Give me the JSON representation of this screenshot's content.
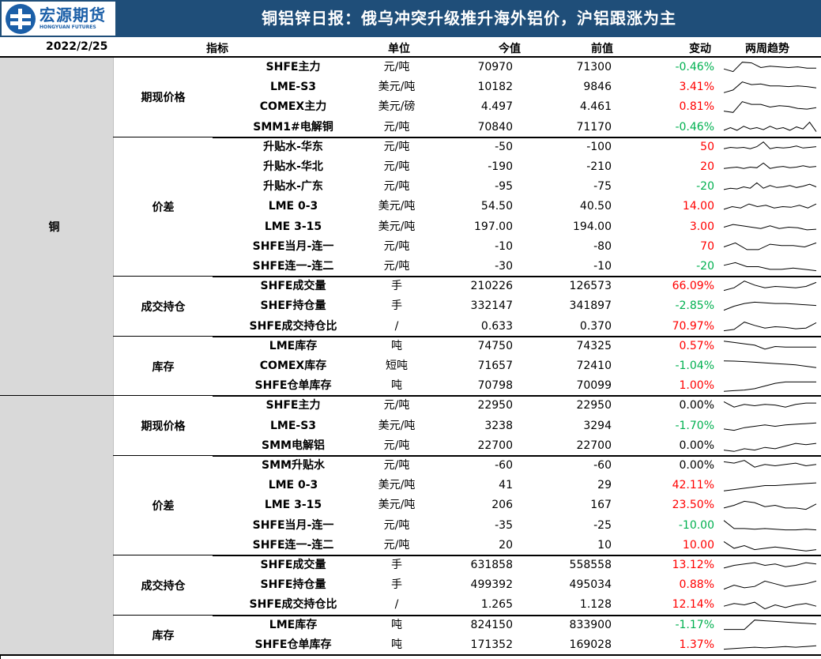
{
  "header": {
    "logo_cn": "宏源期货",
    "logo_en": "HONGYUAN FUTURES",
    "title": "铜铝锌日报：俄乌冲突升级推升海外铝价，沪铝跟涨为主",
    "bar_color": "#1f4e79"
  },
  "table": {
    "date": "2022/2/25",
    "headers": {
      "indicator": "指标",
      "unit": "单位",
      "now": "今值",
      "prev": "前值",
      "change": "变动",
      "trend": "两周趋势"
    },
    "colors": {
      "up": "#ff0000",
      "down": "#00b050",
      "metal_bg": "#d9d9d9"
    },
    "metals": [
      {
        "name": "铜",
        "groups": [
          {
            "name": "期现价格",
            "rows": [
              {
                "indicator": "SHFE主力",
                "unit": "元/吨",
                "now": "70970",
                "prev": "71300",
                "change": "-0.46%",
                "dir": "down",
                "trend": [
                  0.4,
                  0.2,
                  0.9,
                  0.85,
                  0.5,
                  0.6,
                  0.55,
                  0.5,
                  0.55,
                  0.45,
                  0.45
                ]
              },
              {
                "indicator": "LME-S3",
                "unit": "美元/吨",
                "now": "10182",
                "prev": "9846",
                "change": "3.41%",
                "dir": "up",
                "trend": [
                  0.1,
                  0.3,
                  0.9,
                  0.7,
                  0.75,
                  0.6,
                  0.6,
                  0.55,
                  0.6,
                  0.55,
                  0.45
                ]
              },
              {
                "indicator": "COMEX主力",
                "unit": "美元/磅",
                "now": "4.497",
                "prev": "4.461",
                "change": "0.81%",
                "dir": "up",
                "trend": [
                  0.2,
                  0.1,
                  0.9,
                  0.7,
                  0.7,
                  0.5,
                  0.6,
                  0.55,
                  0.4,
                  0.35,
                  0.45
                ]
              },
              {
                "indicator": "SMM1#电解铜",
                "unit": "元/吨",
                "now": "70840",
                "prev": "71170",
                "change": "-0.46%",
                "dir": "down",
                "trend": [
                  0.3,
                  0.5,
                  0.3,
                  0.6,
                  0.4,
                  0.5,
                  0.35,
                  0.6,
                  0.4,
                  0.5,
                  0.3,
                  0.55,
                  0.4,
                  0.9,
                  0.2
                ]
              }
            ]
          },
          {
            "name": "价差",
            "rows": [
              {
                "indicator": "升贴水-华东",
                "unit": "元/吨",
                "now": "-50",
                "prev": "-100",
                "change": "50",
                "dir": "up",
                "trend": [
                  0.4,
                  0.5,
                  0.45,
                  0.5,
                  0.4,
                  0.55,
                  0.9,
                  0.4,
                  0.5,
                  0.45,
                  0.5,
                  0.6,
                  0.45,
                  0.5,
                  0.55
                ]
              },
              {
                "indicator": "升贴水-华北",
                "unit": "元/吨",
                "now": "-190",
                "prev": "-210",
                "change": "20",
                "dir": "up",
                "trend": [
                  0.4,
                  0.45,
                  0.5,
                  0.4,
                  0.5,
                  0.45,
                  0.8,
                  0.4,
                  0.5,
                  0.55,
                  0.45,
                  0.5,
                  0.6,
                  0.5,
                  0.55
                ]
              },
              {
                "indicator": "升贴水-广东",
                "unit": "元/吨",
                "now": "-95",
                "prev": "-75",
                "change": "-20",
                "dir": "down",
                "trend": [
                  0.3,
                  0.4,
                  0.35,
                  0.5,
                  0.4,
                  0.8,
                  0.4,
                  0.6,
                  0.45,
                  0.5,
                  0.6,
                  0.45,
                  0.55,
                  0.7,
                  0.5
                ]
              },
              {
                "indicator": "LME 0-3",
                "unit": "美元/吨",
                "now": "54.50",
                "prev": "40.50",
                "change": "14.00",
                "dir": "up",
                "trend": [
                  0.3,
                  0.5,
                  0.4,
                  0.7,
                  0.5,
                  0.6,
                  0.4,
                  0.5,
                  0.45,
                  0.6,
                  0.4,
                  0.7
                ]
              },
              {
                "indicator": "LME 3-15",
                "unit": "美元/吨",
                "now": "197.00",
                "prev": "194.00",
                "change": "3.00",
                "dir": "up",
                "trend": [
                  0.5,
                  0.7,
                  0.6,
                  0.5,
                  0.4,
                  0.6,
                  0.4,
                  0.5,
                  0.45,
                  0.3,
                  0.35
                ]
              },
              {
                "indicator": "SHFE当月-连一",
                "unit": "元/吨",
                "now": "-10",
                "prev": "-80",
                "change": "70",
                "dir": "up",
                "trend": [
                  0.5,
                  0.8,
                  0.3,
                  0.3,
                  0.7,
                  0.6,
                  0.6,
                  0.5,
                  0.8
                ]
              },
              {
                "indicator": "SHFE连一-连二",
                "unit": "元/吨",
                "now": "-30",
                "prev": "-10",
                "change": "-20",
                "dir": "down",
                "trend": [
                  0.6,
                  0.8,
                  0.5,
                  0.5,
                  0.3,
                  0.3,
                  0.4,
                  0.3,
                  0.2
                ]
              }
            ]
          },
          {
            "name": "成交持仓",
            "rows": [
              {
                "indicator": "SHFE成交量",
                "unit": "手",
                "now": "210226",
                "prev": "126573",
                "change": "66.09%",
                "dir": "up",
                "trend": [
                  0.2,
                  0.4,
                  0.9,
                  0.6,
                  0.4,
                  0.5,
                  0.45,
                  0.4,
                  0.5,
                  0.8
                ]
              },
              {
                "indicator": "SHEF持仓量",
                "unit": "手",
                "now": "332147",
                "prev": "341897",
                "change": "-2.85%",
                "dir": "down",
                "trend": [
                  0.2,
                  0.5,
                  0.7,
                  0.8,
                  0.75,
                  0.7,
                  0.7,
                  0.65,
                  0.6,
                  0.55
                ]
              },
              {
                "indicator": "SHFE成交持仓比",
                "unit": "/",
                "now": "0.633",
                "prev": "0.370",
                "change": "70.97%",
                "dir": "up",
                "trend": [
                  0.2,
                  0.3,
                  0.85,
                  0.6,
                  0.4,
                  0.5,
                  0.45,
                  0.35,
                  0.4,
                  0.8
                ]
              }
            ]
          },
          {
            "name": "库存",
            "rows": [
              {
                "indicator": "LME库存",
                "unit": "吨",
                "now": "74750",
                "prev": "74325",
                "change": "0.57%",
                "dir": "up",
                "trend": [
                  0.9,
                  0.8,
                  0.7,
                  0.6,
                  0.3,
                  0.5,
                  0.45,
                  0.45,
                  0.45,
                  0.45
                ]
              },
              {
                "indicator": "COMEX库存",
                "unit": "短吨",
                "now": "71657",
                "prev": "72410",
                "change": "-1.04%",
                "dir": "down",
                "trend": [
                  0.9,
                  0.88,
                  0.85,
                  0.8,
                  0.75,
                  0.7,
                  0.65,
                  0.6,
                  0.5,
                  0.4
                ]
              },
              {
                "indicator": "SHFE仓单库存",
                "unit": "吨",
                "now": "70798",
                "prev": "70099",
                "change": "1.00%",
                "dir": "up",
                "trend": [
                  0.1,
                  0.15,
                  0.2,
                  0.3,
                  0.5,
                  0.7,
                  0.8,
                  0.8,
                  0.8,
                  0.8
                ]
              }
            ]
          }
        ]
      },
      {
        "name": "",
        "groups": [
          {
            "name": "期现价格",
            "rows": [
              {
                "indicator": "SHFE主力",
                "unit": "元/吨",
                "now": "22950",
                "prev": "22950",
                "change": "0.00%",
                "dir": "flat",
                "trend": [
                  0.8,
                  0.4,
                  0.6,
                  0.5,
                  0.6,
                  0.55,
                  0.4,
                  0.6,
                  0.7,
                  0.7
                ]
              },
              {
                "indicator": "LME-S3",
                "unit": "美元/吨",
                "now": "3238",
                "prev": "3294",
                "change": "-1.70%",
                "dir": "down",
                "trend": [
                  0.3,
                  0.2,
                  0.4,
                  0.5,
                  0.6,
                  0.5,
                  0.6,
                  0.65,
                  0.7,
                  0.75
                ]
              },
              {
                "indicator": "SMM电解铝",
                "unit": "元/吨",
                "now": "22700",
                "prev": "22700",
                "change": "0.00%",
                "dir": "flat",
                "trend": [
                  0.2,
                  0.1,
                  0.3,
                  0.2,
                  0.4,
                  0.3,
                  0.5,
                  0.7,
                  0.6,
                  0.7
                ]
              }
            ]
          },
          {
            "name": "价差",
            "rows": [
              {
                "indicator": "SMM升贴水",
                "unit": "元/吨",
                "now": "-60",
                "prev": "-60",
                "change": "0.00%",
                "dir": "flat",
                "trend": [
                  0.8,
                  0.7,
                  0.9,
                  0.4,
                  0.6,
                  0.5,
                  0.6,
                  0.7,
                  0.5,
                  0.6
                ]
              },
              {
                "indicator": "LME 0-3",
                "unit": "美元/吨",
                "now": "41",
                "prev": "29",
                "change": "42.11%",
                "dir": "up",
                "trend": [
                  0.1,
                  0.2,
                  0.3,
                  0.4,
                  0.5,
                  0.5,
                  0.55,
                  0.6,
                  0.65,
                  0.7
                ]
              },
              {
                "indicator": "LME 3-15",
                "unit": "美元/吨",
                "now": "206",
                "prev": "167",
                "change": "23.50%",
                "dir": "up",
                "trend": [
                  0.3,
                  0.5,
                  0.8,
                  0.7,
                  0.4,
                  0.5,
                  0.3,
                  0.3,
                  0.2,
                  0.6
                ]
              },
              {
                "indicator": "SHFE当月-连一",
                "unit": "元/吨",
                "now": "-35",
                "prev": "-25",
                "change": "-10.00",
                "dir": "down",
                "trend": [
                  0.9,
                  0.3,
                  0.3,
                  0.25,
                  0.3,
                  0.25,
                  0.2,
                  0.2,
                  0.25,
                  0.2
                ]
              },
              {
                "indicator": "SHFE连一-连二",
                "unit": "元/吨",
                "now": "20",
                "prev": "10",
                "change": "10.00",
                "dir": "up",
                "trend": [
                  0.8,
                  0.3,
                  0.5,
                  0.2,
                  0.3,
                  0.4,
                  0.3,
                  0.2,
                  0.1,
                  0.2
                ]
              }
            ]
          },
          {
            "name": "成交持仓",
            "rows": [
              {
                "indicator": "SHFE成交量",
                "unit": "手",
                "now": "631858",
                "prev": "558558",
                "change": "13.12%",
                "dir": "up",
                "trend": [
                  0.3,
                  0.5,
                  0.6,
                  0.7,
                  0.5,
                  0.6,
                  0.4,
                  0.5,
                  0.7,
                  0.6
                ]
              },
              {
                "indicator": "SHFE持仓量",
                "unit": "手",
                "now": "499392",
                "prev": "495034",
                "change": "0.88%",
                "dir": "up",
                "trend": [
                  0.2,
                  0.5,
                  0.3,
                  0.4,
                  0.8,
                  0.6,
                  0.4,
                  0.5,
                  0.6,
                  0.8
                ]
              },
              {
                "indicator": "SHFE成交持仓比",
                "unit": "/",
                "now": "1.265",
                "prev": "1.128",
                "change": "12.14%",
                "dir": "up",
                "trend": [
                  0.4,
                  0.6,
                  0.5,
                  0.7,
                  0.2,
                  0.5,
                  0.3,
                  0.5,
                  0.6,
                  0.4
                ]
              }
            ]
          },
          {
            "name": "库存",
            "rows": [
              {
                "indicator": "LME库存",
                "unit": "吨",
                "now": "824150",
                "prev": "833900",
                "change": "-1.17%",
                "dir": "down",
                "trend": [
                  0.2,
                  0.2,
                  0.2,
                  0.9,
                  0.85,
                  0.8,
                  0.75,
                  0.7,
                  0.65,
                  0.6
                ]
              },
              {
                "indicator": "SHFE仓单库存",
                "unit": "吨",
                "now": "171352",
                "prev": "169028",
                "change": "1.37%",
                "dir": "up",
                "trend": [
                  0.2,
                  0.25,
                  0.3,
                  0.35,
                  0.3,
                  0.35,
                  0.4,
                  0.35,
                  0.4,
                  0.45
                ]
              }
            ]
          }
        ]
      }
    ]
  }
}
